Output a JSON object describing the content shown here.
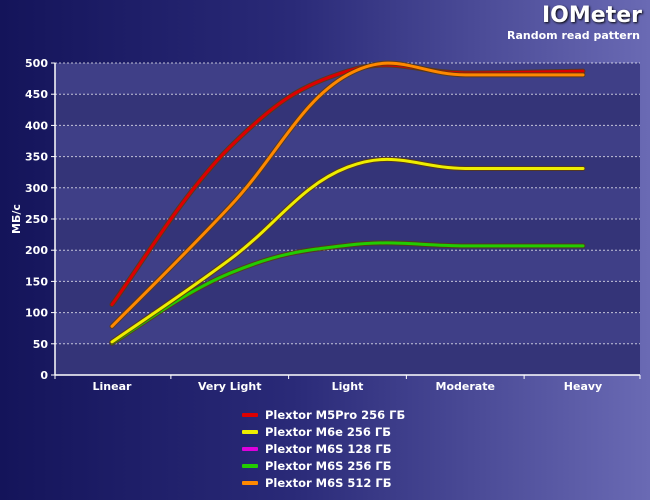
{
  "header": {
    "title": "IOMeter",
    "subtitle": "Random read pattern"
  },
  "chart_data": {
    "type": "line",
    "title": "IOMeter",
    "subtitle": "Random read pattern",
    "xlabel": "",
    "ylabel": "МБ/с",
    "categories": [
      "Linear",
      "Very Light",
      "Light",
      "Moderate",
      "Heavy"
    ],
    "ylim": [
      0,
      500
    ],
    "yticks": [
      0,
      50,
      100,
      150,
      200,
      250,
      300,
      350,
      400,
      450,
      500
    ],
    "grid": true,
    "legend_position": "bottom",
    "series": [
      {
        "name": "Plextor M5Pro 256 ГБ",
        "color": "#dd0000",
        "values": [
          113,
          365,
          487,
          484,
          487
        ]
      },
      {
        "name": "Plextor M6e 256 ГБ",
        "color": "#eeee00",
        "values": [
          53,
          185,
          333,
          331,
          331
        ]
      },
      {
        "name": "Plextor M6S 128 ГБ",
        "color": "#dd00dd",
        "values": [
          null,
          null,
          null,
          null,
          null
        ]
      },
      {
        "name": "Plextor M6S 256 ГБ",
        "color": "#22cc00",
        "values": [
          51,
          163,
          208,
          207,
          207
        ]
      },
      {
        "name": "Plextor M6S 512 ГБ",
        "color": "#ff8800",
        "values": [
          78,
          270,
          481,
          481,
          481
        ]
      }
    ]
  }
}
